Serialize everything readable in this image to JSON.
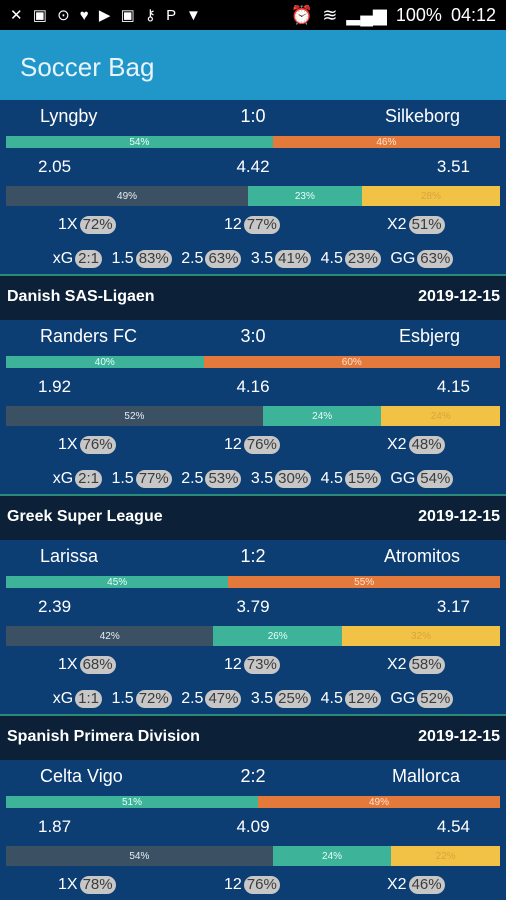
{
  "status_bar": {
    "left_icons": "✕ ▣ ⊙ ♥ ▶ ▣ ⚷ P ▼",
    "alarm": "⏰",
    "battery": "100%",
    "time": "04:12"
  },
  "app": {
    "title": "Soccer Bag"
  },
  "colors": {
    "app_bar": "#2196c9",
    "background": "#0d3e73",
    "header": "#0c2138",
    "home": "#3db39a",
    "away": "#e37a3b",
    "draw": "#3b5163",
    "btts": "#f2c246"
  },
  "sections": [
    {
      "match": {
        "home": "Lyngby",
        "score": "1:0",
        "away": "Silkeborg",
        "bar1": [
          {
            "label": "54%",
            "value": 54
          },
          {
            "label": "46%",
            "value": 46
          }
        ],
        "odds": {
          "home": "2.05",
          "draw": "4.42",
          "away": "3.51"
        },
        "bar2": [
          {
            "label": "49%",
            "value": 49
          },
          {
            "label": "23%",
            "value": 23
          },
          {
            "label": "28%",
            "value": 28
          }
        ],
        "probs": {
          "l1": "1X",
          "v1": "72%",
          "l2": "12",
          "v2": "77%",
          "l3": "X2",
          "v3": "51%"
        },
        "xg": {
          "xg_label": "xG",
          "xg": "2:1",
          "l15": "1.5",
          "v15": "83%",
          "l25": "2.5",
          "v25": "63%",
          "l35": "3.5",
          "v35": "41%",
          "l45": "4.5",
          "v45": "23%",
          "gg_label": "GG",
          "gg": "63%"
        }
      }
    },
    {
      "league": "Danish SAS-Ligaen",
      "date": "2019-12-15",
      "match": {
        "home": "Randers FC",
        "score": "3:0",
        "away": "Esbjerg",
        "bar1": [
          {
            "label": "40%",
            "value": 40
          },
          {
            "label": "60%",
            "value": 60
          }
        ],
        "odds": {
          "home": "1.92",
          "draw": "4.16",
          "away": "4.15"
        },
        "bar2": [
          {
            "label": "52%",
            "value": 52
          },
          {
            "label": "24%",
            "value": 24
          },
          {
            "label": "24%",
            "value": 24
          }
        ],
        "probs": {
          "l1": "1X",
          "v1": "76%",
          "l2": "12",
          "v2": "76%",
          "l3": "X2",
          "v3": "48%"
        },
        "xg": {
          "xg_label": "xG",
          "xg": "2:1",
          "l15": "1.5",
          "v15": "77%",
          "l25": "2.5",
          "v25": "53%",
          "l35": "3.5",
          "v35": "30%",
          "l45": "4.5",
          "v45": "15%",
          "gg_label": "GG",
          "gg": "54%"
        }
      }
    },
    {
      "league": "Greek Super League",
      "date": "2019-12-15",
      "match": {
        "home": "Larissa",
        "score": "1:2",
        "away": "Atromitos",
        "bar1": [
          {
            "label": "45%",
            "value": 45
          },
          {
            "label": "55%",
            "value": 55
          }
        ],
        "odds": {
          "home": "2.39",
          "draw": "3.79",
          "away": "3.17"
        },
        "bar2": [
          {
            "label": "42%",
            "value": 42
          },
          {
            "label": "26%",
            "value": 26
          },
          {
            "label": "32%",
            "value": 32
          }
        ],
        "probs": {
          "l1": "1X",
          "v1": "68%",
          "l2": "12",
          "v2": "73%",
          "l3": "X2",
          "v3": "58%"
        },
        "xg": {
          "xg_label": "xG",
          "xg": "1:1",
          "l15": "1.5",
          "v15": "72%",
          "l25": "2.5",
          "v25": "47%",
          "l35": "3.5",
          "v35": "25%",
          "l45": "4.5",
          "v45": "12%",
          "gg_label": "GG",
          "gg": "52%"
        }
      }
    },
    {
      "league": "Spanish Primera Division",
      "date": "2019-12-15",
      "match": {
        "home": "Celta Vigo",
        "score": "2:2",
        "away": "Mallorca",
        "bar1": [
          {
            "label": "51%",
            "value": 51
          },
          {
            "label": "49%",
            "value": 49
          }
        ],
        "odds": {
          "home": "1.87",
          "draw": "4.09",
          "away": "4.54"
        },
        "bar2": [
          {
            "label": "54%",
            "value": 54
          },
          {
            "label": "24%",
            "value": 24
          },
          {
            "label": "22%",
            "value": 22
          }
        ],
        "probs": {
          "l1": "1X",
          "v1": "78%",
          "l2": "12",
          "v2": "76%",
          "l3": "X2",
          "v3": "46%"
        },
        "xg": null
      }
    }
  ]
}
